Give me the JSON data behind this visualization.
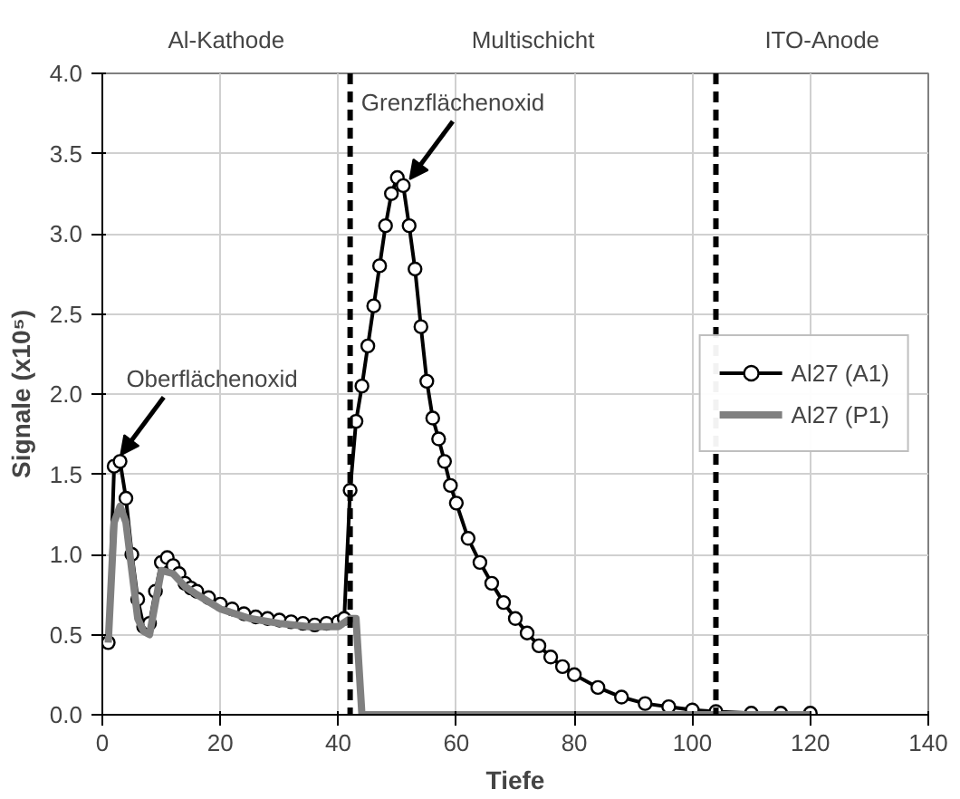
{
  "chart_data": {
    "type": "line",
    "xlabel": "Tiefe",
    "ylabel": "Signale (x10⁵)",
    "xlim": [
      0,
      140
    ],
    "xticks": [
      0,
      20,
      40,
      60,
      80,
      100,
      120,
      140
    ],
    "ylim": [
      0,
      4
    ],
    "yticks": [
      {
        "value": 0,
        "label": "0.0"
      },
      {
        "value": 0.5,
        "label": "0.5"
      },
      {
        "value": 1,
        "label": "1.0"
      },
      {
        "value": 1.5,
        "label": "1.5"
      },
      {
        "value": 2,
        "label": "2.0"
      },
      {
        "value": 2.5,
        "label": "2.5"
      },
      {
        "value": 3,
        "label": "3.0"
      },
      {
        "value": 3.5,
        "label": "3.5"
      },
      {
        "value": 4,
        "label": "4.0"
      }
    ],
    "grid": true,
    "legend": "right",
    "series": [
      {
        "name": "Al27 (A1)",
        "color": "#000000",
        "marker": "circle",
        "x": [
          1,
          2,
          3,
          4,
          5,
          6,
          7,
          8,
          9,
          10,
          11,
          12,
          13,
          14,
          15,
          16,
          18,
          20,
          22,
          24,
          26,
          28,
          30,
          32,
          34,
          36,
          38,
          40,
          41,
          42,
          43,
          44,
          45,
          46,
          47,
          48,
          49,
          50,
          51,
          52,
          53,
          54,
          55,
          56,
          57,
          58,
          59,
          60,
          62,
          64,
          66,
          68,
          70,
          72,
          74,
          76,
          78,
          80,
          84,
          88,
          92,
          96,
          100,
          104,
          110,
          115,
          120
        ],
        "values": [
          0.45,
          1.55,
          1.58,
          1.35,
          1.0,
          0.72,
          0.55,
          0.57,
          0.77,
          0.95,
          0.98,
          0.93,
          0.88,
          0.82,
          0.79,
          0.77,
          0.73,
          0.69,
          0.66,
          0.63,
          0.61,
          0.6,
          0.59,
          0.58,
          0.57,
          0.56,
          0.57,
          0.58,
          0.6,
          1.4,
          1.83,
          2.05,
          2.3,
          2.55,
          2.8,
          3.05,
          3.25,
          3.35,
          3.3,
          3.05,
          2.78,
          2.42,
          2.08,
          1.85,
          1.72,
          1.58,
          1.43,
          1.32,
          1.1,
          0.95,
          0.82,
          0.7,
          0.6,
          0.51,
          0.43,
          0.36,
          0.3,
          0.25,
          0.17,
          0.11,
          0.07,
          0.05,
          0.03,
          0.02,
          0.01,
          0.01,
          0.01
        ]
      },
      {
        "name": "Al27 (P1)",
        "color": "#808080",
        "marker": "none",
        "x": [
          1,
          2,
          3,
          4,
          5,
          6,
          7,
          8,
          9,
          10,
          12,
          14,
          16,
          20,
          25,
          30,
          35,
          40,
          42,
          43,
          44,
          60,
          80,
          100,
          120
        ],
        "values": [
          0.45,
          1.2,
          1.3,
          1.2,
          0.9,
          0.6,
          0.52,
          0.5,
          0.7,
          0.9,
          0.88,
          0.8,
          0.75,
          0.66,
          0.6,
          0.57,
          0.55,
          0.55,
          0.6,
          0.6,
          0,
          0,
          0,
          0,
          0
        ]
      }
    ],
    "ref_lines": [
      {
        "axis": "x",
        "value": 42,
        "color": "#000000",
        "line_style": "dashed"
      },
      {
        "axis": "x",
        "value": 104,
        "color": "#000000",
        "line_style": "dashed"
      }
    ],
    "annotations": [
      "Al-Kathode",
      "Multischicht",
      "ITO-Anode",
      {
        "text": "Oberflächenoxid",
        "x": 2,
        "y": 1.58
      },
      {
        "text": "Grenzflächenoxid",
        "x": 51,
        "y": 3.3
      }
    ]
  }
}
